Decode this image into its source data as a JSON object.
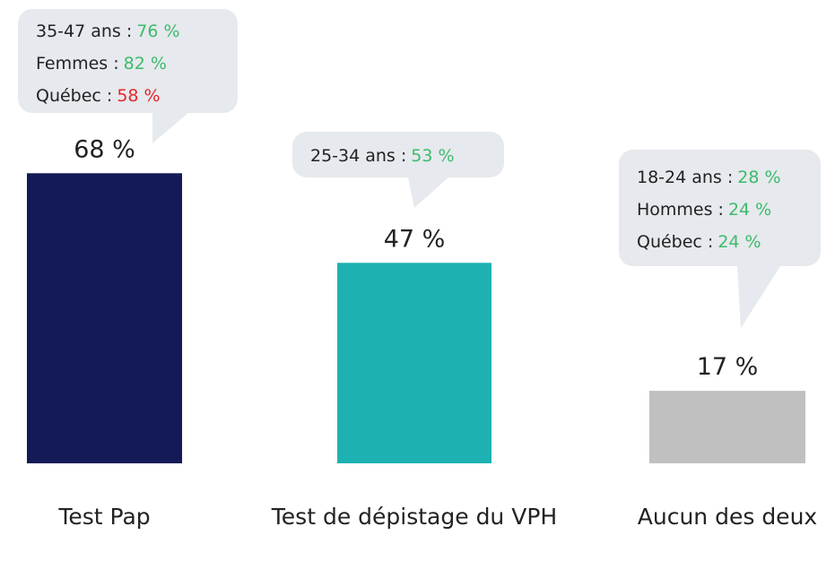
{
  "chart_data": {
    "type": "bar",
    "categories": [
      "Test Pap",
      "Test de dépistage du VPH",
      "Aucun des deux"
    ],
    "values": [
      68,
      47,
      17
    ],
    "value_labels": [
      "68 %",
      "47 %",
      "17 %"
    ],
    "colors": [
      "#131a55",
      "#1eb1b1",
      "#c0c0c0"
    ],
    "annotations": [
      [
        {
          "label": "35-47 ans :",
          "value": "76 %",
          "color": "#3dbb6c"
        },
        {
          "label": "Femmes :",
          "value": "82 %",
          "color": "#3dbb6c"
        },
        {
          "label": "Québec :",
          "value": "58 %",
          "color": "#e8262a"
        }
      ],
      [
        {
          "label": "25-34 ans :",
          "value": "53 %",
          "color": "#3dbb6c"
        }
      ],
      [
        {
          "label": "18-24 ans :",
          "value": "28 %",
          "color": "#3dbb6c"
        },
        {
          "label": "Hommes :",
          "value": "24 %",
          "color": "#3dbb6c"
        },
        {
          "label": "Québec :",
          "value": "24 %",
          "color": "#3dbb6c"
        }
      ]
    ]
  }
}
